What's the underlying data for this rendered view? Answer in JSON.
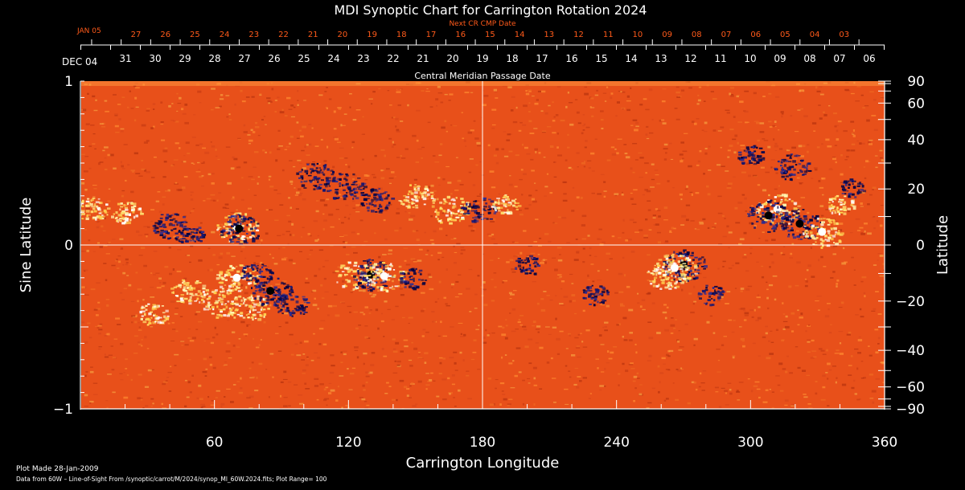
{
  "chart_data": {
    "type": "heatmap",
    "title": "MDI Synoptic Chart for Carrington Rotation 2024",
    "xlabel": "Carrington Longitude",
    "ylabel_left": "Sine Latitude",
    "ylabel_right": "Latitude",
    "xlim": [
      0,
      360
    ],
    "ylim": [
      -1,
      1
    ],
    "x_ticks": [
      60,
      120,
      180,
      240,
      300,
      360
    ],
    "y_ticks_left": [
      {
        "value": 1,
        "label": "1"
      },
      {
        "value": 0,
        "label": "0"
      },
      {
        "value": -1,
        "label": "−1"
      }
    ],
    "y_ticks_right": [
      {
        "deg": 90,
        "label": "90"
      },
      {
        "deg": 60,
        "label": "60"
      },
      {
        "deg": 40,
        "label": "40"
      },
      {
        "deg": 20,
        "label": "20"
      },
      {
        "deg": 0,
        "label": "0"
      },
      {
        "deg": -20,
        "label": "−20"
      },
      {
        "deg": -40,
        "label": "−40"
      },
      {
        "deg": -60,
        "label": "−60"
      },
      {
        "deg": -90,
        "label": "−90"
      }
    ],
    "top_axis_cmp": {
      "label": "Central Meridian Passage Date",
      "start_label": "DEC 04",
      "days": [
        "31",
        "30",
        "29",
        "28",
        "27",
        "26",
        "25",
        "24",
        "23",
        "22",
        "21",
        "20",
        "19",
        "18",
        "17",
        "16",
        "15",
        "14",
        "13",
        "12",
        "11",
        "10",
        "09",
        "08",
        "07",
        "06"
      ]
    },
    "top_axis_next_cmp": {
      "label": "Next CR CMP Date",
      "start_label": "JAN 05",
      "days": [
        "27",
        "26",
        "25",
        "24",
        "23",
        "22",
        "21",
        "20",
        "19",
        "18",
        "17",
        "16",
        "15",
        "14",
        "13",
        "12",
        "11",
        "10",
        "09",
        "08",
        "07",
        "06",
        "05",
        "04",
        "03"
      ]
    },
    "colors": {
      "background": "#000000",
      "field_base": "#e8501a",
      "positive_polarity": "#fff2a0",
      "negative_polarity": "#1a1a7a",
      "next_cmp_text": "#ff5a1a",
      "grid": "#ffffff"
    },
    "features": [
      {
        "polarity": "positive",
        "lon": 5,
        "sinlat": 0.22,
        "strength": 0.6
      },
      {
        "polarity": "positive",
        "lon": 20,
        "sinlat": 0.2,
        "strength": 0.5
      },
      {
        "polarity": "negative",
        "lon": 40,
        "sinlat": 0.12,
        "strength": 0.7
      },
      {
        "polarity": "negative",
        "lon": 48,
        "sinlat": 0.07,
        "strength": 0.5
      },
      {
        "polarity": "positive",
        "lon": 70,
        "sinlat": 0.11,
        "strength": 0.9
      },
      {
        "polarity": "negative",
        "lon": 71,
        "sinlat": 0.1,
        "strength": 0.9
      },
      {
        "polarity": "negative",
        "lon": 105,
        "sinlat": 0.42,
        "strength": 0.8
      },
      {
        "polarity": "negative",
        "lon": 118,
        "sinlat": 0.36,
        "strength": 0.8
      },
      {
        "polarity": "negative",
        "lon": 132,
        "sinlat": 0.28,
        "strength": 0.6
      },
      {
        "polarity": "positive",
        "lon": 150,
        "sinlat": 0.3,
        "strength": 0.7
      },
      {
        "polarity": "positive",
        "lon": 165,
        "sinlat": 0.22,
        "strength": 0.8
      },
      {
        "polarity": "negative",
        "lon": 178,
        "sinlat": 0.22,
        "strength": 0.7
      },
      {
        "polarity": "positive",
        "lon": 190,
        "sinlat": 0.25,
        "strength": 0.4
      },
      {
        "polarity": "positive",
        "lon": 48,
        "sinlat": -0.28,
        "strength": 0.7
      },
      {
        "polarity": "positive",
        "lon": 62,
        "sinlat": -0.35,
        "strength": 0.8
      },
      {
        "polarity": "positive",
        "lon": 70,
        "sinlat": -0.2,
        "strength": 0.9
      },
      {
        "polarity": "positive",
        "lon": 75,
        "sinlat": -0.38,
        "strength": 0.8
      },
      {
        "polarity": "positive",
        "lon": 32,
        "sinlat": -0.42,
        "strength": 0.5
      },
      {
        "polarity": "negative",
        "lon": 85,
        "sinlat": -0.28,
        "strength": 0.9
      },
      {
        "polarity": "negative",
        "lon": 95,
        "sinlat": -0.36,
        "strength": 0.7
      },
      {
        "polarity": "negative",
        "lon": 78,
        "sinlat": -0.18,
        "strength": 0.6
      },
      {
        "polarity": "positive",
        "lon": 122,
        "sinlat": -0.18,
        "strength": 0.8
      },
      {
        "polarity": "negative",
        "lon": 130,
        "sinlat": -0.18,
        "strength": 1.0
      },
      {
        "polarity": "positive",
        "lon": 136,
        "sinlat": -0.19,
        "strength": 0.9
      },
      {
        "polarity": "negative",
        "lon": 148,
        "sinlat": -0.2,
        "strength": 0.4
      },
      {
        "polarity": "negative",
        "lon": 200,
        "sinlat": -0.12,
        "strength": 0.4
      },
      {
        "polarity": "negative",
        "lon": 230,
        "sinlat": -0.3,
        "strength": 0.4
      },
      {
        "polarity": "positive",
        "lon": 262,
        "sinlat": -0.18,
        "strength": 0.8
      },
      {
        "polarity": "negative",
        "lon": 270,
        "sinlat": -0.12,
        "strength": 1.0
      },
      {
        "polarity": "positive",
        "lon": 266,
        "sinlat": -0.14,
        "strength": 0.9
      },
      {
        "polarity": "negative",
        "lon": 282,
        "sinlat": -0.3,
        "strength": 0.4
      },
      {
        "polarity": "negative",
        "lon": 318,
        "sinlat": 0.48,
        "strength": 0.7
      },
      {
        "polarity": "negative",
        "lon": 300,
        "sinlat": 0.55,
        "strength": 0.4
      },
      {
        "polarity": "positive",
        "lon": 312,
        "sinlat": 0.22,
        "strength": 1.0
      },
      {
        "polarity": "negative",
        "lon": 308,
        "sinlat": 0.18,
        "strength": 1.0
      },
      {
        "polarity": "negative",
        "lon": 322,
        "sinlat": 0.13,
        "strength": 0.9
      },
      {
        "polarity": "positive",
        "lon": 332,
        "sinlat": 0.08,
        "strength": 0.9
      },
      {
        "polarity": "positive",
        "lon": 340,
        "sinlat": 0.25,
        "strength": 0.4
      },
      {
        "polarity": "negative",
        "lon": 345,
        "sinlat": 0.35,
        "strength": 0.3
      }
    ]
  },
  "footer": {
    "made": "Plot Made 28-Jan-2009",
    "source": "Data from 60W – Line-of-Sight From /synoptic/carrot/M/2024/synop_Ml_60W.2024.fits; Plot Range=  100"
  }
}
